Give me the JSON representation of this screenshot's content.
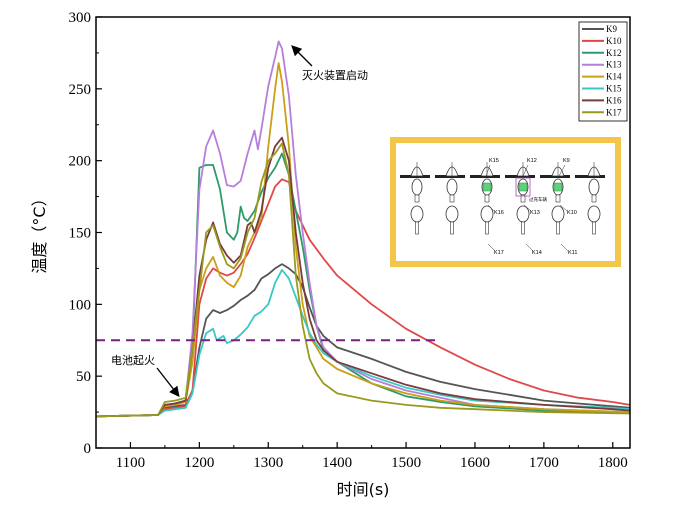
{
  "chart_data": {
    "type": "line",
    "xlabel": "时间(s)",
    "ylabel": "温度（°C）",
    "xlim": [
      1050,
      1825
    ],
    "ylim": [
      0,
      300
    ],
    "xticks": [
      1100,
      1200,
      1300,
      1400,
      1500,
      1600,
      1700,
      1800
    ],
    "yticks": [
      0,
      50,
      100,
      150,
      200,
      250,
      300
    ],
    "threshold": {
      "y": 75,
      "x_start": 1050,
      "x_end": 1550,
      "color": "#7b1e82"
    },
    "annotations": [
      {
        "text": "电池起火",
        "x": 1170,
        "y": 33
      },
      {
        "text": "灭火装置启动",
        "x": 1318,
        "y": 283
      }
    ],
    "inset_labels": [
      "K15",
      "K12",
      "K9",
      "K16",
      "K13",
      "K10",
      "K17",
      "K14",
      "K11",
      "过充车辆"
    ],
    "series": [
      {
        "name": "K9",
        "color": "#555555",
        "points": [
          [
            1050,
            22
          ],
          [
            1140,
            23
          ],
          [
            1150,
            28
          ],
          [
            1165,
            29
          ],
          [
            1180,
            30
          ],
          [
            1190,
            40
          ],
          [
            1200,
            70
          ],
          [
            1210,
            90
          ],
          [
            1220,
            96
          ],
          [
            1230,
            94
          ],
          [
            1240,
            96
          ],
          [
            1250,
            99
          ],
          [
            1260,
            103
          ],
          [
            1270,
            106
          ],
          [
            1280,
            110
          ],
          [
            1290,
            118
          ],
          [
            1300,
            121
          ],
          [
            1310,
            125
          ],
          [
            1320,
            128
          ],
          [
            1330,
            125
          ],
          [
            1340,
            121
          ],
          [
            1350,
            112
          ],
          [
            1360,
            98
          ],
          [
            1370,
            85
          ],
          [
            1380,
            78
          ],
          [
            1400,
            70
          ],
          [
            1450,
            62
          ],
          [
            1500,
            53
          ],
          [
            1550,
            46
          ],
          [
            1600,
            41
          ],
          [
            1650,
            37
          ],
          [
            1700,
            33
          ],
          [
            1750,
            31
          ],
          [
            1800,
            29
          ],
          [
            1825,
            28
          ]
        ]
      },
      {
        "name": "K10",
        "color": "#e04848",
        "points": [
          [
            1050,
            22
          ],
          [
            1140,
            23
          ],
          [
            1150,
            27
          ],
          [
            1165,
            28
          ],
          [
            1180,
            29
          ],
          [
            1190,
            40
          ],
          [
            1200,
            100
          ],
          [
            1210,
            118
          ],
          [
            1220,
            125
          ],
          [
            1230,
            122
          ],
          [
            1240,
            120
          ],
          [
            1250,
            122
          ],
          [
            1260,
            128
          ],
          [
            1270,
            135
          ],
          [
            1280,
            146
          ],
          [
            1290,
            158
          ],
          [
            1300,
            170
          ],
          [
            1310,
            182
          ],
          [
            1320,
            187
          ],
          [
            1330,
            185
          ],
          [
            1340,
            165
          ],
          [
            1350,
            155
          ],
          [
            1360,
            145
          ],
          [
            1380,
            132
          ],
          [
            1400,
            120
          ],
          [
            1450,
            100
          ],
          [
            1500,
            83
          ],
          [
            1550,
            70
          ],
          [
            1600,
            58
          ],
          [
            1650,
            48
          ],
          [
            1700,
            40
          ],
          [
            1750,
            35
          ],
          [
            1800,
            32
          ],
          [
            1825,
            30
          ]
        ]
      },
      {
        "name": "K12",
        "color": "#2e9a6a",
        "points": [
          [
            1050,
            22
          ],
          [
            1140,
            23
          ],
          [
            1150,
            30
          ],
          [
            1165,
            31
          ],
          [
            1180,
            33
          ],
          [
            1190,
            70
          ],
          [
            1200,
            195
          ],
          [
            1210,
            197
          ],
          [
            1220,
            197
          ],
          [
            1230,
            180
          ],
          [
            1240,
            150
          ],
          [
            1250,
            145
          ],
          [
            1255,
            150
          ],
          [
            1260,
            168
          ],
          [
            1265,
            160
          ],
          [
            1270,
            158
          ],
          [
            1280,
            165
          ],
          [
            1290,
            178
          ],
          [
            1300,
            188
          ],
          [
            1310,
            195
          ],
          [
            1320,
            205
          ],
          [
            1330,
            190
          ],
          [
            1340,
            165
          ],
          [
            1350,
            140
          ],
          [
            1360,
            110
          ],
          [
            1370,
            85
          ],
          [
            1380,
            68
          ],
          [
            1400,
            60
          ],
          [
            1450,
            45
          ],
          [
            1500,
            36
          ],
          [
            1550,
            32
          ],
          [
            1600,
            29
          ],
          [
            1700,
            26
          ],
          [
            1825,
            25
          ]
        ]
      },
      {
        "name": "K13",
        "color": "#b77fdc",
        "points": [
          [
            1050,
            22
          ],
          [
            1140,
            23
          ],
          [
            1150,
            30
          ],
          [
            1165,
            31
          ],
          [
            1180,
            33
          ],
          [
            1190,
            80
          ],
          [
            1200,
            180
          ],
          [
            1210,
            210
          ],
          [
            1220,
            221
          ],
          [
            1230,
            205
          ],
          [
            1240,
            183
          ],
          [
            1250,
            182
          ],
          [
            1260,
            186
          ],
          [
            1270,
            205
          ],
          [
            1280,
            221
          ],
          [
            1285,
            208
          ],
          [
            1290,
            222
          ],
          [
            1300,
            252
          ],
          [
            1310,
            272
          ],
          [
            1315,
            283
          ],
          [
            1320,
            278
          ],
          [
            1330,
            245
          ],
          [
            1340,
            190
          ],
          [
            1350,
            150
          ],
          [
            1360,
            115
          ],
          [
            1370,
            85
          ],
          [
            1380,
            70
          ],
          [
            1400,
            60
          ],
          [
            1450,
            48
          ],
          [
            1500,
            40
          ],
          [
            1550,
            35
          ],
          [
            1600,
            30
          ],
          [
            1700,
            27
          ],
          [
            1825,
            25
          ]
        ]
      },
      {
        "name": "K14",
        "color": "#c9a018",
        "points": [
          [
            1050,
            22
          ],
          [
            1140,
            23
          ],
          [
            1150,
            29
          ],
          [
            1165,
            30
          ],
          [
            1180,
            32
          ],
          [
            1190,
            60
          ],
          [
            1200,
            110
          ],
          [
            1210,
            125
          ],
          [
            1220,
            133
          ],
          [
            1230,
            120
          ],
          [
            1240,
            115
          ],
          [
            1250,
            112
          ],
          [
            1260,
            120
          ],
          [
            1270,
            140
          ],
          [
            1280,
            150
          ],
          [
            1290,
            160
          ],
          [
            1300,
            210
          ],
          [
            1310,
            250
          ],
          [
            1315,
            268
          ],
          [
            1320,
            255
          ],
          [
            1330,
            210
          ],
          [
            1340,
            140
          ],
          [
            1350,
            100
          ],
          [
            1360,
            78
          ],
          [
            1380,
            62
          ],
          [
            1400,
            55
          ],
          [
            1450,
            45
          ],
          [
            1500,
            38
          ],
          [
            1550,
            33
          ],
          [
            1600,
            30
          ],
          [
            1700,
            27
          ],
          [
            1825,
            25
          ]
        ]
      },
      {
        "name": "K15",
        "color": "#3cc7c7",
        "points": [
          [
            1050,
            22
          ],
          [
            1140,
            23
          ],
          [
            1150,
            26
          ],
          [
            1165,
            27
          ],
          [
            1180,
            28
          ],
          [
            1190,
            38
          ],
          [
            1200,
            65
          ],
          [
            1210,
            80
          ],
          [
            1220,
            83
          ],
          [
            1225,
            75
          ],
          [
            1235,
            78
          ],
          [
            1240,
            73
          ],
          [
            1250,
            75
          ],
          [
            1260,
            79
          ],
          [
            1270,
            84
          ],
          [
            1280,
            92
          ],
          [
            1290,
            95
          ],
          [
            1300,
            100
          ],
          [
            1310,
            115
          ],
          [
            1320,
            124
          ],
          [
            1330,
            118
          ],
          [
            1340,
            105
          ],
          [
            1350,
            92
          ],
          [
            1360,
            80
          ],
          [
            1370,
            72
          ],
          [
            1380,
            66
          ],
          [
            1400,
            60
          ],
          [
            1450,
            50
          ],
          [
            1500,
            42
          ],
          [
            1550,
            37
          ],
          [
            1600,
            33
          ],
          [
            1700,
            30
          ],
          [
            1800,
            28
          ],
          [
            1825,
            27
          ]
        ]
      },
      {
        "name": "K16",
        "color": "#7a3b3b",
        "points": [
          [
            1050,
            22
          ],
          [
            1140,
            23
          ],
          [
            1150,
            30
          ],
          [
            1165,
            31
          ],
          [
            1180,
            33
          ],
          [
            1190,
            70
          ],
          [
            1200,
            120
          ],
          [
            1210,
            145
          ],
          [
            1220,
            157
          ],
          [
            1230,
            142
          ],
          [
            1240,
            134
          ],
          [
            1250,
            129
          ],
          [
            1260,
            134
          ],
          [
            1270,
            155
          ],
          [
            1275,
            157
          ],
          [
            1280,
            150
          ],
          [
            1290,
            165
          ],
          [
            1300,
            195
          ],
          [
            1310,
            210
          ],
          [
            1320,
            216
          ],
          [
            1330,
            200
          ],
          [
            1340,
            150
          ],
          [
            1350,
            115
          ],
          [
            1360,
            90
          ],
          [
            1370,
            75
          ],
          [
            1380,
            68
          ],
          [
            1400,
            60
          ],
          [
            1450,
            52
          ],
          [
            1500,
            44
          ],
          [
            1550,
            38
          ],
          [
            1600,
            34
          ],
          [
            1700,
            30
          ],
          [
            1800,
            27
          ],
          [
            1825,
            26
          ]
        ]
      },
      {
        "name": "K17",
        "color": "#9a9a20",
        "points": [
          [
            1050,
            22
          ],
          [
            1140,
            23
          ],
          [
            1150,
            32
          ],
          [
            1165,
            33
          ],
          [
            1180,
            35
          ],
          [
            1190,
            70
          ],
          [
            1200,
            110
          ],
          [
            1210,
            150
          ],
          [
            1220,
            155
          ],
          [
            1230,
            140
          ],
          [
            1240,
            128
          ],
          [
            1250,
            125
          ],
          [
            1260,
            132
          ],
          [
            1270,
            150
          ],
          [
            1280,
            160
          ],
          [
            1290,
            185
          ],
          [
            1300,
            200
          ],
          [
            1310,
            205
          ],
          [
            1320,
            212
          ],
          [
            1330,
            190
          ],
          [
            1340,
            120
          ],
          [
            1350,
            85
          ],
          [
            1360,
            62
          ],
          [
            1370,
            52
          ],
          [
            1380,
            45
          ],
          [
            1400,
            38
          ],
          [
            1450,
            33
          ],
          [
            1500,
            30
          ],
          [
            1550,
            28
          ],
          [
            1600,
            27
          ],
          [
            1700,
            25
          ],
          [
            1825,
            24
          ]
        ]
      }
    ]
  }
}
